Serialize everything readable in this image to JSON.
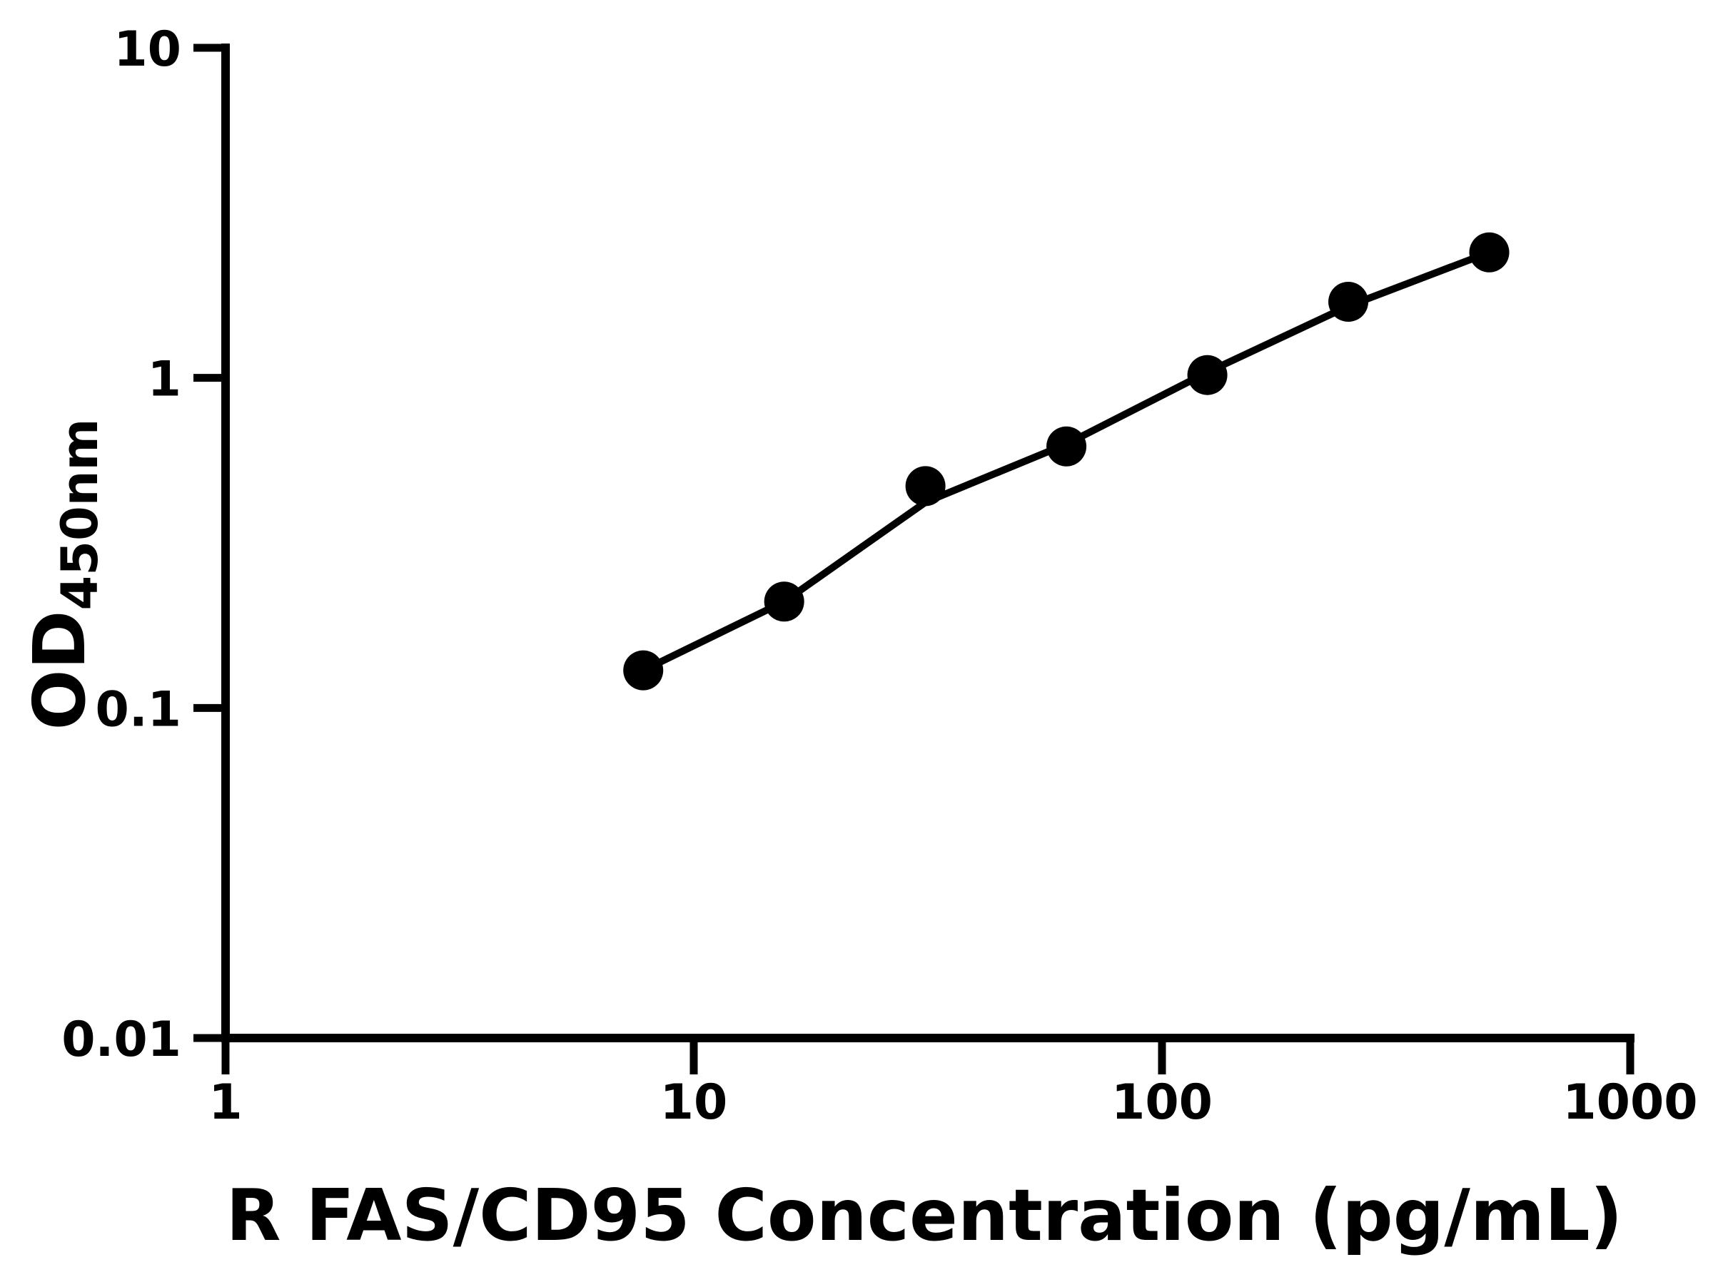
{
  "figure": {
    "background_color": "#ffffff",
    "ink_color": "#000000"
  },
  "chart_data": {
    "type": "scatter",
    "title": "",
    "xlabel": "R FAS/CD95 Concentration (pg/mL)",
    "ylabel_main": "OD",
    "ylabel_subscript": "450nm",
    "x_scale": "log",
    "y_scale": "log",
    "xlim": [
      1,
      1000
    ],
    "ylim": [
      0.01,
      10
    ],
    "x_ticks": [
      1,
      10,
      100,
      1000
    ],
    "y_ticks": [
      10,
      1,
      0.1,
      0.01
    ],
    "x_tick_labels": [
      "1",
      "10",
      "100",
      "1000"
    ],
    "y_tick_labels": [
      "10",
      "1",
      "0.1",
      "0.01"
    ],
    "grid": false,
    "legend": null,
    "series": [
      {
        "name": "standard-points",
        "type": "scatter",
        "marker": "filled-circle",
        "color": "#000000",
        "x": [
          7.8,
          15.6,
          31.25,
          62.5,
          125,
          250,
          500
        ],
        "y": [
          0.13,
          0.21,
          0.47,
          0.62,
          1.02,
          1.7,
          2.4
        ]
      },
      {
        "name": "fit-line",
        "type": "line",
        "color": "#000000",
        "x": [
          7.8,
          15.6,
          31.25,
          62.5,
          125,
          250,
          500
        ],
        "y": [
          0.13,
          0.21,
          0.42,
          0.63,
          1.04,
          1.65,
          2.4
        ]
      }
    ]
  }
}
